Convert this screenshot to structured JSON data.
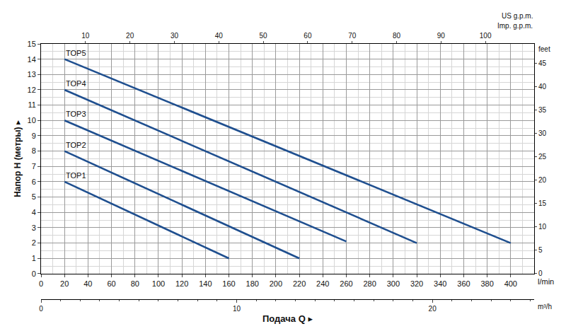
{
  "chart_data": {
    "type": "line",
    "x_label": "Подача Q ▸",
    "y_label": "Напор H (метры) ▸",
    "x_unit": "l/min",
    "x2_label": "m³/h",
    "x3_label": "US g.p.m.",
    "x4_label": "Imp. g.p.m.",
    "y2_label": "feet",
    "xlim": [
      0,
      420
    ],
    "xticks": [
      0,
      20,
      40,
      60,
      80,
      100,
      120,
      140,
      160,
      180,
      200,
      220,
      240,
      260,
      280,
      300,
      320,
      340,
      360,
      380,
      400
    ],
    "ylim": [
      0,
      15
    ],
    "yticks": [
      0,
      1,
      2,
      3,
      4,
      5,
      6,
      7,
      8,
      9,
      10,
      11,
      12,
      13,
      14,
      15
    ],
    "x2lim": [
      0,
      25.2
    ],
    "x2ticks": [
      0,
      10,
      20
    ],
    "x3lim": [
      0,
      110.96
    ],
    "x3ticks": [
      10,
      20,
      30,
      40,
      50,
      60,
      70,
      80,
      90,
      100
    ],
    "y2lim": [
      0,
      49.21
    ],
    "y2ticks": [
      0,
      5,
      10,
      15,
      20,
      25,
      30,
      35,
      40,
      45
    ],
    "grid": true,
    "series": [
      {
        "name": "TOP1",
        "color": "#1f4f8f",
        "x": [
          20,
          160
        ],
        "values": [
          6,
          1
        ]
      },
      {
        "name": "TOP2",
        "color": "#1f4f8f",
        "x": [
          20,
          220
        ],
        "values": [
          8,
          1
        ]
      },
      {
        "name": "TOP3",
        "color": "#1f4f8f",
        "x": [
          20,
          260
        ],
        "values": [
          10,
          2.1
        ]
      },
      {
        "name": "TOP4",
        "color": "#1f4f8f",
        "x": [
          20,
          320
        ],
        "values": [
          12,
          2
        ]
      },
      {
        "name": "TOP5",
        "color": "#1f4f8f",
        "x": [
          20,
          400
        ],
        "values": [
          14,
          2
        ]
      }
    ]
  }
}
